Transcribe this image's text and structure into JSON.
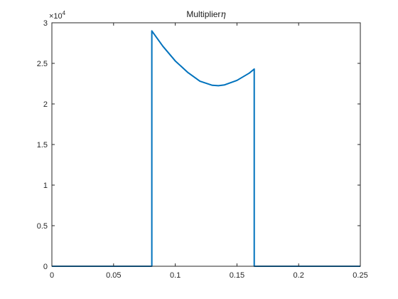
{
  "chart_data": {
    "type": "line",
    "title": "Multiplier",
    "title_symbol": "η",
    "xlabel": "",
    "ylabel": "",
    "xlim": [
      0,
      0.25
    ],
    "ylim": [
      0,
      30000
    ],
    "y_exponent_label": {
      "base": "×10",
      "exp": "4"
    },
    "x_ticks": [
      {
        "value": 0,
        "label": "0"
      },
      {
        "value": 0.05,
        "label": "0.05"
      },
      {
        "value": 0.1,
        "label": "0.1"
      },
      {
        "value": 0.15,
        "label": "0.15"
      },
      {
        "value": 0.2,
        "label": "0.2"
      },
      {
        "value": 0.25,
        "label": "0.25"
      }
    ],
    "y_ticks": [
      {
        "value": 0,
        "label": "0"
      },
      {
        "value": 5000,
        "label": "0.5"
      },
      {
        "value": 10000,
        "label": "1"
      },
      {
        "value": 15000,
        "label": "1.5"
      },
      {
        "value": 20000,
        "label": "2"
      },
      {
        "value": 25000,
        "label": "2.5"
      },
      {
        "value": 30000,
        "label": "3"
      }
    ],
    "grid": false,
    "series": [
      {
        "color": "#0072BD",
        "x": [
          0,
          0.081,
          0.081,
          0.09,
          0.1,
          0.11,
          0.12,
          0.13,
          0.135,
          0.14,
          0.15,
          0.16,
          0.164,
          0.164,
          0.25
        ],
        "y": [
          0,
          0,
          29000,
          27100,
          25300,
          23900,
          22800,
          22300,
          22250,
          22350,
          22900,
          23800,
          24300,
          0,
          0
        ]
      }
    ]
  }
}
